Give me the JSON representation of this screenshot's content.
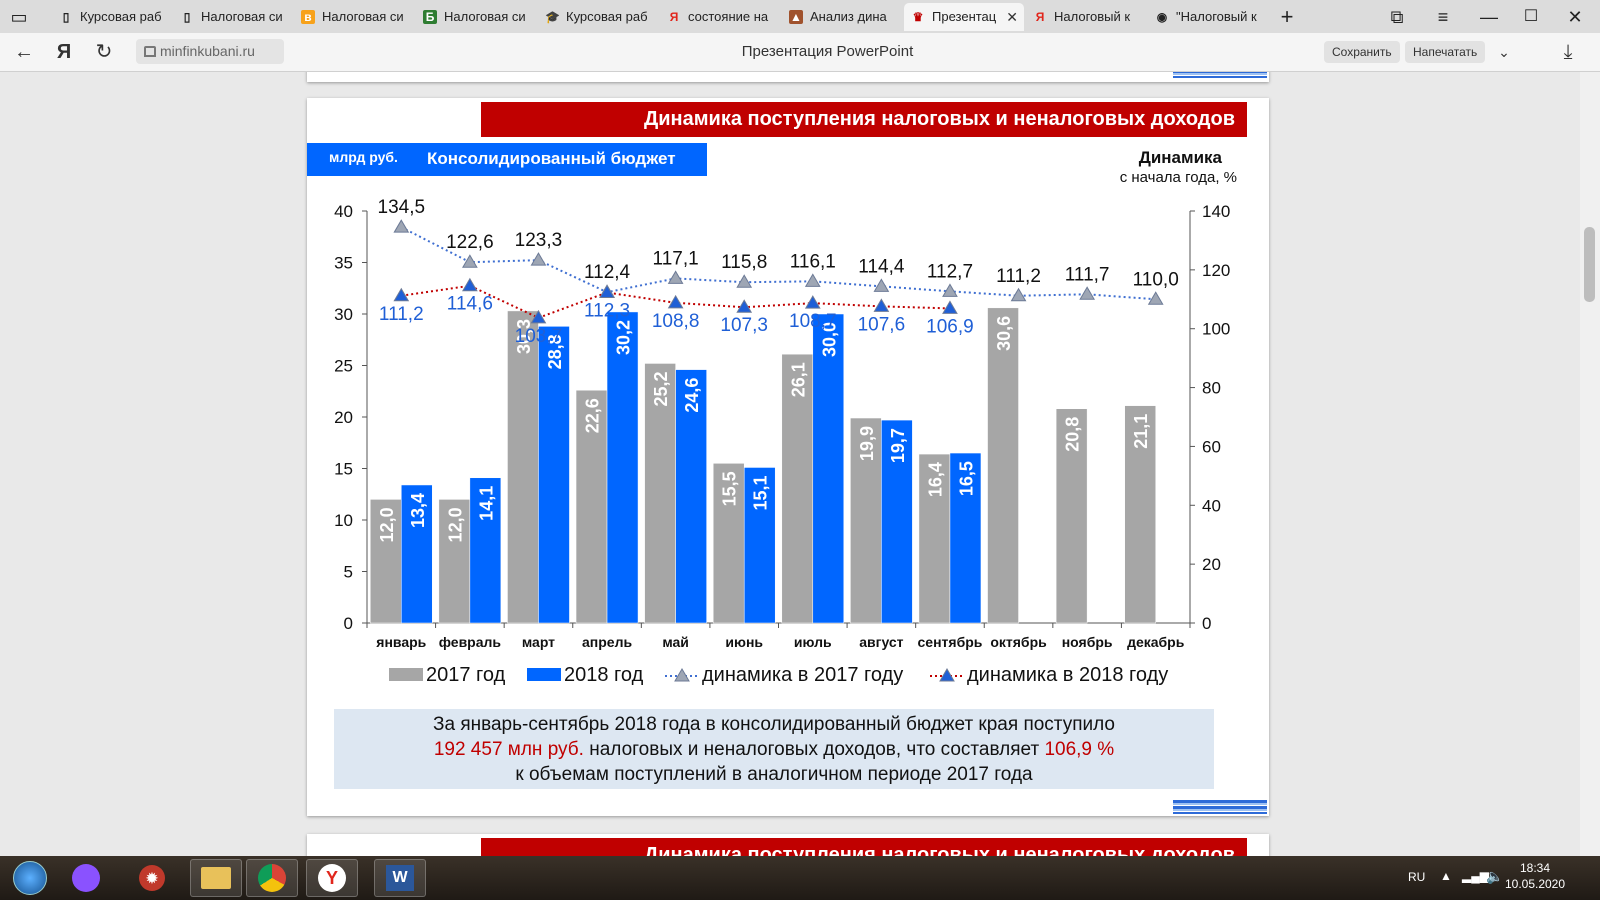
{
  "tabs": [
    {
      "label": "Курсовая раб",
      "icon": "document-icon"
    },
    {
      "label": "Налоговая си",
      "icon": "document-icon"
    },
    {
      "label": "Налоговая си",
      "icon": "orange-app-icon"
    },
    {
      "label": "Налоговая си",
      "icon": "green-b-icon"
    },
    {
      "label": "Курсовая раб",
      "icon": "graduation-cap-icon"
    },
    {
      "label": "состояние на",
      "icon": "yandex-icon"
    },
    {
      "label": "Анализ дина",
      "icon": "brown-app-icon"
    },
    {
      "label": "Презентац",
      "icon": "coat-of-arms-icon",
      "active": true
    },
    {
      "label": "Налоговый к",
      "icon": "yandex-icon"
    },
    {
      "label": "\"Налоговый к",
      "icon": "globe-icon"
    }
  ],
  "address": {
    "domain": "minfinkubani.ru",
    "page_title": "Презентация PowerPoint",
    "save_label": "Сохранить",
    "print_label": "Напечатать"
  },
  "slide": {
    "header": "Динамика поступления налоговых и неналоговых доходов",
    "unit": "млрд руб.",
    "budget": "Консолидированный бюджет",
    "dynamics_title": "Динамика",
    "dynamics_sub": "с начала года, %",
    "note": {
      "line1": "За январь-сентябрь 2018 года в консолидированный бюджет края поступило",
      "amount": "192 457 млн руб.",
      "line2_mid": " налоговых и неналоговых доходов, что составляет ",
      "percent": "106,9 %",
      "line3": "к объемам поступлений в аналогичном периоде 2017 года"
    }
  },
  "next_slide_header": "Динамика поступления налоговых и неналоговых доходов",
  "chart_data": {
    "type": "bar",
    "categories": [
      "январь",
      "февраль",
      "март",
      "апрель",
      "май",
      "июнь",
      "июль",
      "август",
      "сентябрь",
      "октябрь",
      "ноябрь",
      "декабрь"
    ],
    "series": [
      {
        "name": "2017 год",
        "type": "bar",
        "axis": "left",
        "color": "#a6a6a6",
        "values": [
          12.0,
          12.0,
          30.3,
          22.6,
          25.2,
          15.5,
          26.1,
          19.9,
          16.4,
          30.6,
          20.8,
          21.1
        ],
        "labels": [
          "12,0",
          "12,0",
          "30,3",
          "22,6",
          "25,2",
          "15,5",
          "26,1",
          "19,9",
          "16,4",
          "30,6",
          "20,8",
          "21,1"
        ]
      },
      {
        "name": "2018 год",
        "type": "bar",
        "axis": "left",
        "color": "#0066ff",
        "values": [
          13.4,
          14.1,
          28.8,
          30.2,
          24.6,
          15.1,
          30.0,
          19.7,
          16.5,
          null,
          null,
          null
        ],
        "labels": [
          "13,4",
          "14,1",
          "28,8",
          "30,2",
          "24,6",
          "15,1",
          "30,0",
          "19,7",
          "16,5",
          null,
          null,
          null
        ]
      },
      {
        "name": "динамика в 2017 году",
        "type": "line",
        "axis": "right",
        "color": "#3f6fd1",
        "values": [
          134.5,
          122.6,
          123.3,
          112.4,
          117.1,
          115.8,
          116.1,
          114.4,
          112.7,
          111.2,
          111.7,
          110.0
        ],
        "labels": [
          "134,5",
          "122,6",
          "123,3",
          "112,4",
          "117,1",
          "115,8",
          "116,1",
          "114,4",
          "112,7",
          "111,2",
          "111,7",
          "110,0"
        ]
      },
      {
        "name": "динамика в 2018 году",
        "type": "line",
        "axis": "right",
        "color": "#c00000",
        "values": [
          111.2,
          114.6,
          103.7,
          112.3,
          108.8,
          107.3,
          108.7,
          107.6,
          106.9,
          null,
          null,
          null
        ],
        "labels": [
          "111,2",
          "114,6",
          "103,7",
          "112,3",
          "108,8",
          "107,3",
          "108,7",
          "107,6",
          "106,9",
          null,
          null,
          null
        ]
      }
    ],
    "ylim": [
      0,
      40
    ],
    "yticks": [
      0,
      5,
      10,
      15,
      20,
      25,
      30,
      35,
      40
    ],
    "y2lim": [
      0,
      140
    ],
    "y2ticks": [
      0,
      20,
      40,
      60,
      80,
      100,
      120,
      140
    ],
    "legend_position": "bottom"
  },
  "taskbar": {
    "apps": [
      "start-button",
      "alice-icon",
      "antivirus-icon",
      "file-explorer-icon",
      "chrome-icon",
      "yandex-browser-icon",
      "word-icon"
    ],
    "lang": "RU",
    "time": "18:34",
    "date": "10.05.2020"
  }
}
